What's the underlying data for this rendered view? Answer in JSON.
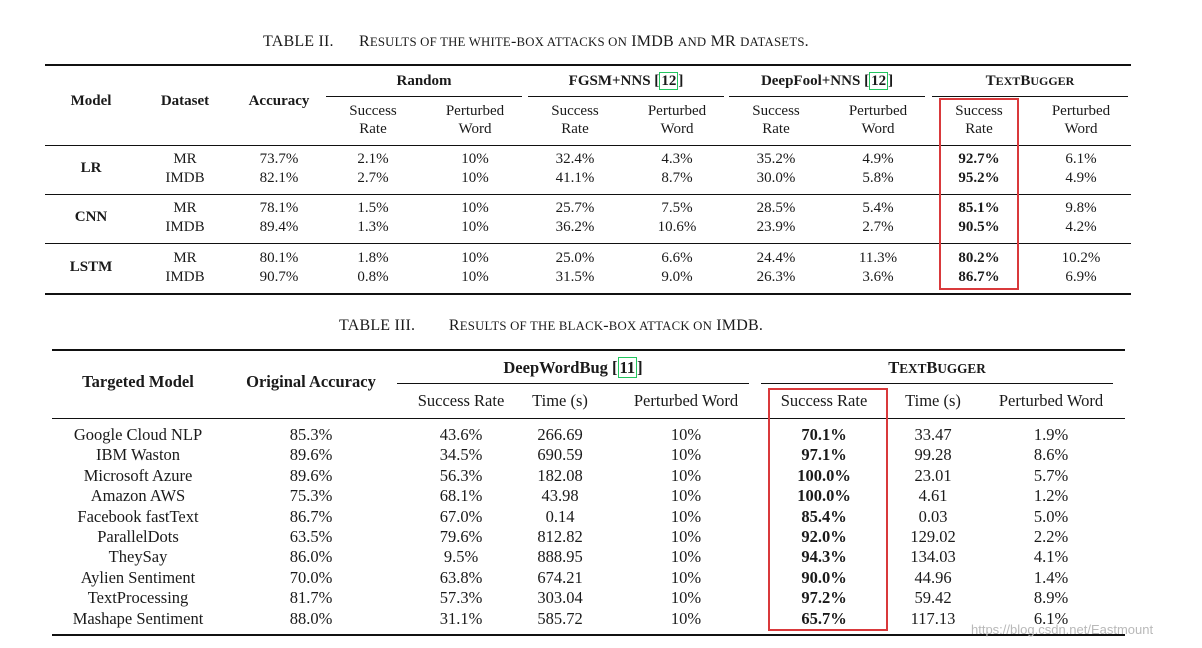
{
  "table2": {
    "caption_label": "TABLE II.",
    "caption_R": "R",
    "caption_rest1": "ESULTS OF THE WHITE",
    "caption_dash1": "-",
    "caption_rest2": "BOX ATTACKS ON",
    "caption_imdb": "IMDB",
    "caption_and": "AND",
    "caption_mr": "MR",
    "caption_rest3": "DATASETS",
    "caption_period": ".",
    "header": {
      "model": "Model",
      "dataset": "Dataset",
      "accuracy": "Accuracy",
      "random": "Random",
      "fgsm": "FGSM+NNS [",
      "fgsm_ref": "12",
      "fgsm_close": "]",
      "deepfool": "DeepFool+NNS [",
      "deepfool_ref": "12",
      "deepfool_close": "]",
      "textbugger_T": "T",
      "textbugger_rest1": "EXT",
      "textbugger_B": "B",
      "textbugger_rest2": "UGGER",
      "success": "Success",
      "rate": "Rate",
      "perturbed": "Perturbed",
      "word": "Word"
    },
    "groups": [
      {
        "model": "LR",
        "rows": [
          {
            "dataset": "MR",
            "acc": "73.7%",
            "r_sr": "2.1%",
            "r_pw": "10%",
            "f_sr": "32.4%",
            "f_pw": "4.3%",
            "d_sr": "35.2%",
            "d_pw": "4.9%",
            "t_sr": "92.7%",
            "t_pw": "6.1%"
          },
          {
            "dataset": "IMDB",
            "acc": "82.1%",
            "r_sr": "2.7%",
            "r_pw": "10%",
            "f_sr": "41.1%",
            "f_pw": "8.7%",
            "d_sr": "30.0%",
            "d_pw": "5.8%",
            "t_sr": "95.2%",
            "t_pw": "4.9%"
          }
        ]
      },
      {
        "model": "CNN",
        "rows": [
          {
            "dataset": "MR",
            "acc": "78.1%",
            "r_sr": "1.5%",
            "r_pw": "10%",
            "f_sr": "25.7%",
            "f_pw": "7.5%",
            "d_sr": "28.5%",
            "d_pw": "5.4%",
            "t_sr": "85.1%",
            "t_pw": "9.8%"
          },
          {
            "dataset": "IMDB",
            "acc": "89.4%",
            "r_sr": "1.3%",
            "r_pw": "10%",
            "f_sr": "36.2%",
            "f_pw": "10.6%",
            "d_sr": "23.9%",
            "d_pw": "2.7%",
            "t_sr": "90.5%",
            "t_pw": "4.2%"
          }
        ]
      },
      {
        "model": "LSTM",
        "rows": [
          {
            "dataset": "MR",
            "acc": "80.1%",
            "r_sr": "1.8%",
            "r_pw": "10%",
            "f_sr": "25.0%",
            "f_pw": "6.6%",
            "d_sr": "24.4%",
            "d_pw": "11.3%",
            "t_sr": "80.2%",
            "t_pw": "10.2%"
          },
          {
            "dataset": "IMDB",
            "acc": "90.7%",
            "r_sr": "0.8%",
            "r_pw": "10%",
            "f_sr": "31.5%",
            "f_pw": "9.0%",
            "d_sr": "26.3%",
            "d_pw": "3.6%",
            "t_sr": "86.7%",
            "t_pw": "6.9%"
          }
        ]
      }
    ]
  },
  "table3": {
    "caption_label": "TABLE III.",
    "caption_R": "R",
    "caption_rest1": "ESULTS OF THE BLACK",
    "caption_dash": "-",
    "caption_rest2": "BOX ATTACK ON",
    "caption_imdb": "IMDB",
    "caption_period": ".",
    "header": {
      "targeted_model": "Targeted Model",
      "original_accuracy": "Original Accuracy",
      "deepwordbug": "DeepWordBug [",
      "deepwordbug_ref": "11",
      "deepwordbug_close": "]",
      "textbugger_T": "T",
      "textbugger_rest1": "EXT",
      "textbugger_B": "B",
      "textbugger_rest2": "UGGER",
      "success_rate": "Success Rate",
      "time": "Time (s)",
      "perturbed_word": "Perturbed Word"
    },
    "rows": [
      {
        "model": "Google Cloud NLP",
        "acc": "85.3%",
        "dw_sr": "43.6%",
        "dw_t": "266.69",
        "dw_pw": "10%",
        "tb_sr": "70.1%",
        "tb_t": "33.47",
        "tb_pw": "1.9%"
      },
      {
        "model": "IBM Waston",
        "acc": "89.6%",
        "dw_sr": "34.5%",
        "dw_t": "690.59",
        "dw_pw": "10%",
        "tb_sr": "97.1%",
        "tb_t": "99.28",
        "tb_pw": "8.6%"
      },
      {
        "model": "Microsoft Azure",
        "acc": "89.6%",
        "dw_sr": "56.3%",
        "dw_t": "182.08",
        "dw_pw": "10%",
        "tb_sr": "100.0%",
        "tb_t": "23.01",
        "tb_pw": "5.7%"
      },
      {
        "model": "Amazon AWS",
        "acc": "75.3%",
        "dw_sr": "68.1%",
        "dw_t": "43.98",
        "dw_pw": "10%",
        "tb_sr": "100.0%",
        "tb_t": "4.61",
        "tb_pw": "1.2%"
      },
      {
        "model": "Facebook fastText",
        "acc": "86.7%",
        "dw_sr": "67.0%",
        "dw_t": "0.14",
        "dw_pw": "10%",
        "tb_sr": "85.4%",
        "tb_t": "0.03",
        "tb_pw": "5.0%"
      },
      {
        "model": "ParallelDots",
        "acc": "63.5%",
        "dw_sr": "79.6%",
        "dw_t": "812.82",
        "dw_pw": "10%",
        "tb_sr": "92.0%",
        "tb_t": "129.02",
        "tb_pw": "2.2%"
      },
      {
        "model": "TheySay",
        "acc": "86.0%",
        "dw_sr": "9.5%",
        "dw_t": "888.95",
        "dw_pw": "10%",
        "tb_sr": "94.3%",
        "tb_t": "134.03",
        "tb_pw": "4.1%"
      },
      {
        "model": "Aylien Sentiment",
        "acc": "70.0%",
        "dw_sr": "63.8%",
        "dw_t": "674.21",
        "dw_pw": "10%",
        "tb_sr": "90.0%",
        "tb_t": "44.96",
        "tb_pw": "1.4%"
      },
      {
        "model": "TextProcessing",
        "acc": "81.7%",
        "dw_sr": "57.3%",
        "dw_t": "303.04",
        "dw_pw": "10%",
        "tb_sr": "97.2%",
        "tb_t": "59.42",
        "tb_pw": "8.9%"
      },
      {
        "model": "Mashape Sentiment",
        "acc": "88.0%",
        "dw_sr": "31.1%",
        "dw_t": "585.72",
        "dw_pw": "10%",
        "tb_sr": "65.7%",
        "tb_t": "117.13",
        "tb_pw": "6.1%"
      }
    ]
  },
  "watermark": "https://blog.csdn.net/Eastmount",
  "colors": {
    "highlight_box": "#d9393b",
    "ref_box": "#22c55e"
  }
}
